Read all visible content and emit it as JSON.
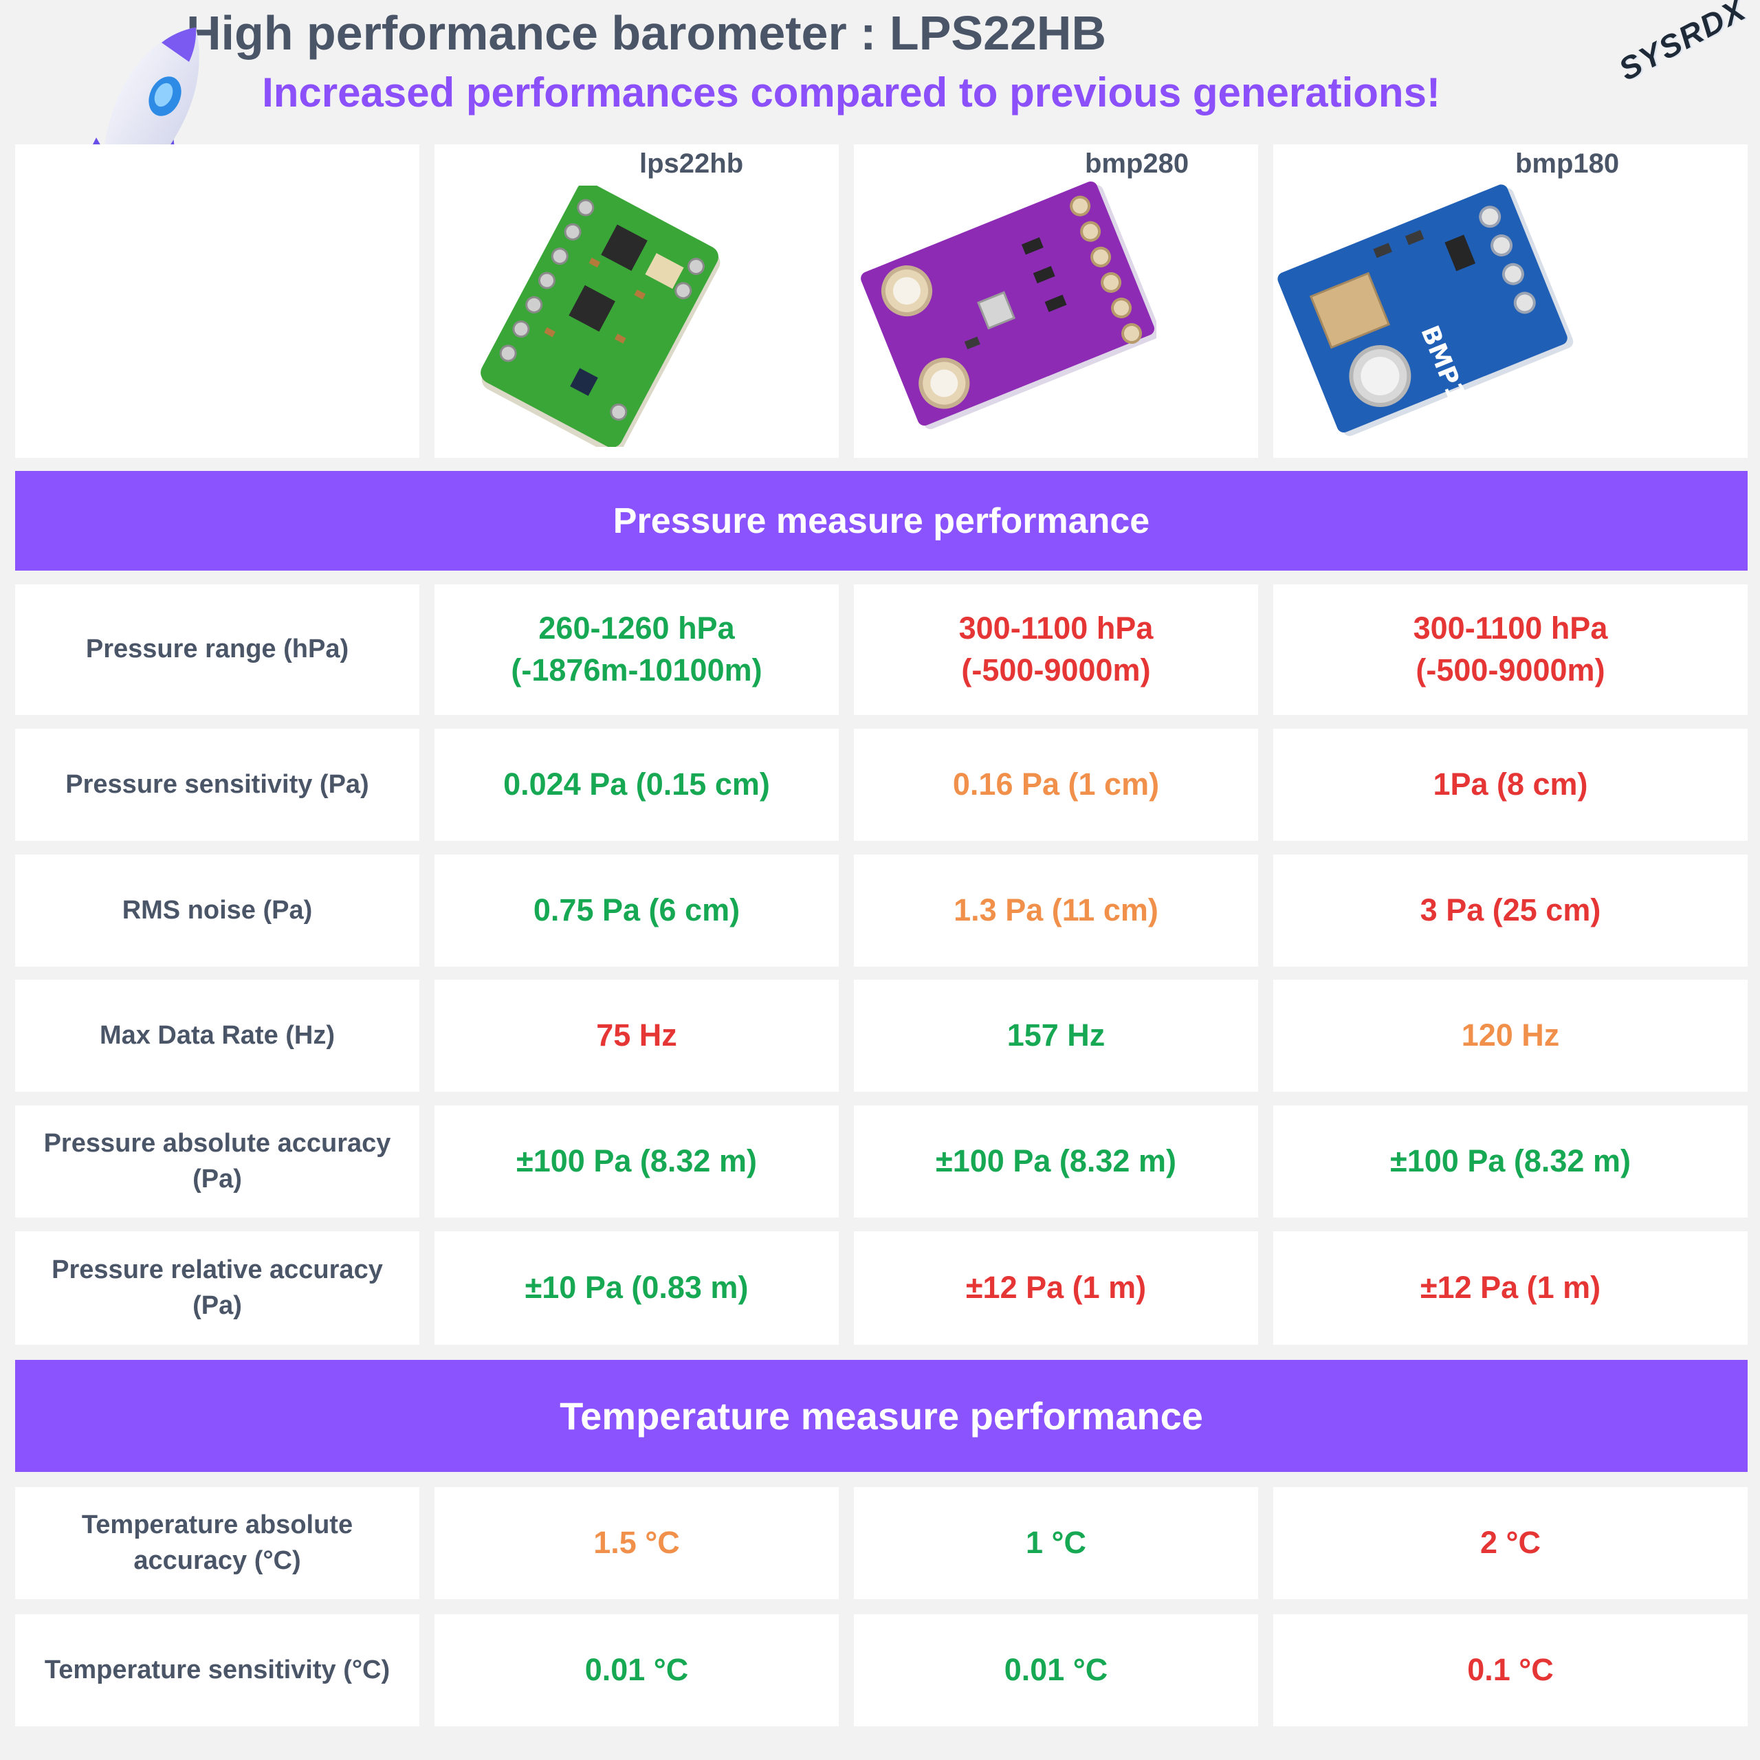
{
  "header": {
    "title": "High performance barometer : LPS22HB",
    "subtitle": "Increased performances compared to previous generations!",
    "logo_text": "SYSRDX"
  },
  "sensors": [
    {
      "name": "lps22hb",
      "board_color": "#3aa637"
    },
    {
      "name": "bmp280",
      "board_color": "#8e2bb5"
    },
    {
      "name": "bmp180",
      "board_color": "#1f5fb5"
    }
  ],
  "sections": {
    "pressure_title": "Pressure measure performance",
    "temperature_title": "Temperature measure performance"
  },
  "pressure_rows": [
    {
      "label": "Pressure range (hPa)",
      "values": [
        {
          "text": "260-1260 hPa\n(-1876m-10100m)",
          "rating": "green"
        },
        {
          "text": "300-1100 hPa\n(-500-9000m)",
          "rating": "red"
        },
        {
          "text": "300-1100 hPa\n(-500-9000m)",
          "rating": "red"
        }
      ]
    },
    {
      "label": "Pressure sensitivity (Pa)",
      "values": [
        {
          "text": "0.024 Pa (0.15 cm)",
          "rating": "green"
        },
        {
          "text": "0.16 Pa (1 cm)",
          "rating": "orange"
        },
        {
          "text": "1Pa (8 cm)",
          "rating": "red"
        }
      ]
    },
    {
      "label": "RMS noise (Pa)",
      "values": [
        {
          "text": "0.75 Pa (6 cm)",
          "rating": "green"
        },
        {
          "text": "1.3 Pa (11 cm)",
          "rating": "orange"
        },
        {
          "text": "3 Pa (25 cm)",
          "rating": "red"
        }
      ]
    },
    {
      "label": "Max Data Rate (Hz)",
      "values": [
        {
          "text": "75 Hz",
          "rating": "red"
        },
        {
          "text": "157 Hz",
          "rating": "green"
        },
        {
          "text": "120 Hz",
          "rating": "orange"
        }
      ]
    },
    {
      "label": "Pressure absolute accuracy\n(Pa)",
      "values": [
        {
          "text": "±100 Pa (8.32 m)",
          "rating": "green"
        },
        {
          "text": "±100 Pa (8.32 m)",
          "rating": "green"
        },
        {
          "text": "±100 Pa (8.32 m)",
          "rating": "green"
        }
      ]
    },
    {
      "label": "Pressure relative accuracy\n(Pa)",
      "values": [
        {
          "text": "±10 Pa (0.83 m)",
          "rating": "green"
        },
        {
          "text": "±12 Pa (1 m)",
          "rating": "red"
        },
        {
          "text": "±12 Pa (1 m)",
          "rating": "red"
        }
      ]
    }
  ],
  "temperature_rows": [
    {
      "label": "Temperature absolute\naccuracy (°C)",
      "values": [
        {
          "text": "1.5 °C",
          "rating": "orange"
        },
        {
          "text": "1 °C",
          "rating": "green"
        },
        {
          "text": "2 °C",
          "rating": "red"
        }
      ]
    },
    {
      "label": "Temperature sensitivity (°C)",
      "values": [
        {
          "text": "0.01 °C",
          "rating": "green"
        },
        {
          "text": "0.01 °C",
          "rating": "green"
        },
        {
          "text": "0.1 °C",
          "rating": "red"
        }
      ]
    }
  ],
  "colors": {
    "green": "#17a854",
    "red": "#e53535",
    "orange": "#f0904a",
    "band": "#8b53fe",
    "label": "#4a5568"
  }
}
